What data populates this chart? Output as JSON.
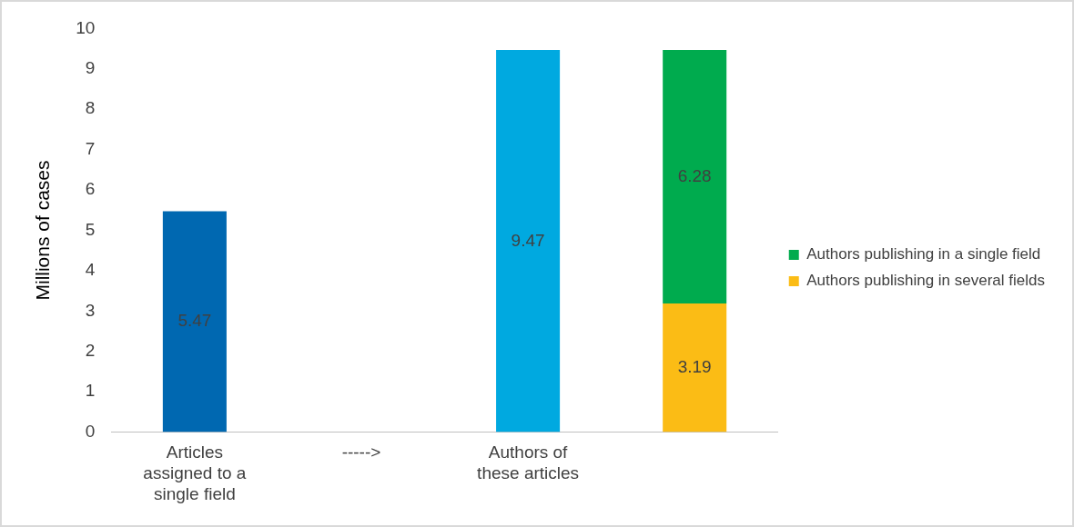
{
  "chart_data": {
    "type": "bar",
    "ylabel": "Millions of cases",
    "categories": [
      "Articles assigned to a single field",
      "----->",
      "Authors of these articles",
      null
    ],
    "stacked": true,
    "ylim": [
      0,
      10
    ],
    "yticks": [
      0,
      1,
      2,
      3,
      4,
      5,
      6,
      7,
      8,
      9,
      10
    ],
    "grid": false,
    "legend": "right",
    "data_labels": true,
    "series": [
      {
        "color": "#0068b1",
        "values": [
          5.47,
          null,
          null,
          null
        ]
      },
      {
        "color": "#00a9e0",
        "values": [
          null,
          null,
          9.47,
          null
        ]
      },
      {
        "name": "Authors publishing in several fields",
        "color": "#fbbc15",
        "values": [
          null,
          null,
          null,
          3.19
        ]
      },
      {
        "name": "Authors publishing in a single field",
        "color": "#00ab4e",
        "values": [
          null,
          null,
          null,
          6.28
        ]
      }
    ]
  }
}
